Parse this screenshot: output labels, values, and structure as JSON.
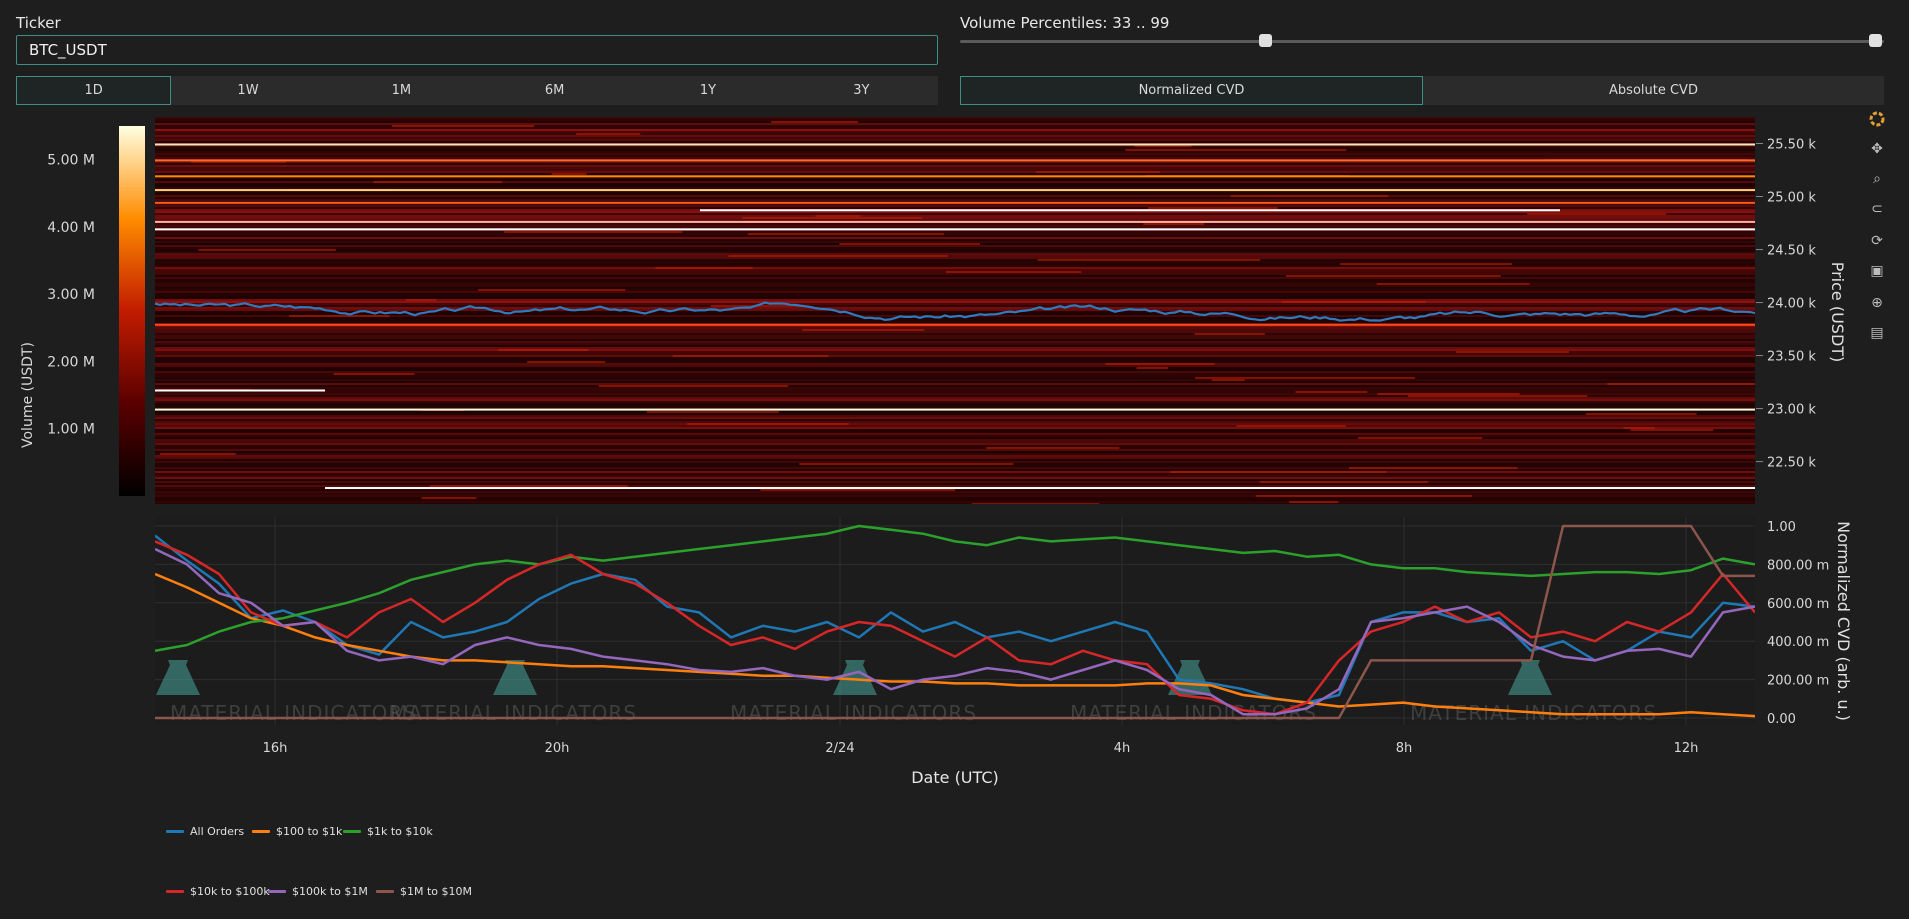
{
  "ticker": {
    "label": "Ticker",
    "value": "BTC_USDT"
  },
  "timeframes": [
    {
      "label": "1D",
      "active": true
    },
    {
      "label": "1W",
      "active": false
    },
    {
      "label": "1M",
      "active": false
    },
    {
      "label": "6M",
      "active": false
    },
    {
      "label": "1Y",
      "active": false
    },
    {
      "label": "3Y",
      "active": false
    }
  ],
  "volume_percentiles": {
    "label": "Volume Percentiles: 33 .. 99",
    "low": 33,
    "high": 99
  },
  "cvd_modes": [
    {
      "label": "Normalized CVD",
      "active": true
    },
    {
      "label": "Absolute CVD",
      "active": false
    }
  ],
  "modebar": [
    "plotly-logo-icon",
    "pan-icon",
    "zoom-icon",
    "lasso-icon",
    "reset-icon",
    "save-icon",
    "spike-icon",
    "hover-icon"
  ],
  "chart_data": [
    {
      "type": "heatmap",
      "colorbar": {
        "title": "Volume (USDT)",
        "ticks": [
          "5.00 M",
          "4.00 M",
          "3.00 M",
          "2.00 M",
          "1.00 M"
        ],
        "range": [
          0,
          5500000
        ]
      },
      "y_axis": {
        "title": "Price (USDT)",
        "ticks": [
          "25.50 k",
          "25.00 k",
          "24.50 k",
          "24.00 k",
          "23.50 k",
          "23.00 k",
          "22.50 k"
        ],
        "range": [
          22100,
          25750
        ]
      },
      "overlay_series": {
        "name": "All Orders",
        "color": "#2f7bc0"
      }
    },
    {
      "type": "line",
      "x_axis": {
        "title": "Date (UTC)",
        "ticks": [
          "16h",
          "20h",
          "2/24",
          "4h",
          "8h",
          "12h"
        ]
      },
      "y_axis": {
        "title": "Normalized CVD (arb. u.)",
        "ticks": [
          "1.00",
          "800.00 m",
          "600.00 m",
          "400.00 m",
          "200.00 m",
          "0.00"
        ],
        "range": [
          0,
          1
        ]
      },
      "series": [
        {
          "name": "All Orders",
          "color": "#1f77b4",
          "values": [
            0.95,
            0.82,
            0.7,
            0.52,
            0.56,
            0.5,
            0.38,
            0.33,
            0.5,
            0.42,
            0.45,
            0.5,
            0.62,
            0.7,
            0.75,
            0.72,
            0.58,
            0.55,
            0.42,
            0.48,
            0.45,
            0.5,
            0.42,
            0.55,
            0.45,
            0.5,
            0.42,
            0.45,
            0.4,
            0.45,
            0.5,
            0.45,
            0.2,
            0.18,
            0.15,
            0.1,
            0.08,
            0.12,
            0.5,
            0.55,
            0.55,
            0.5,
            0.52,
            0.35,
            0.4,
            0.3,
            0.35,
            0.45,
            0.42,
            0.6,
            0.58
          ]
        },
        {
          "name": "$100 to $1k",
          "color": "#ff7f0e",
          "values": [
            0.75,
            0.68,
            0.6,
            0.52,
            0.48,
            0.42,
            0.38,
            0.35,
            0.32,
            0.3,
            0.3,
            0.29,
            0.28,
            0.27,
            0.27,
            0.26,
            0.25,
            0.24,
            0.23,
            0.22,
            0.22,
            0.21,
            0.2,
            0.19,
            0.19,
            0.18,
            0.18,
            0.17,
            0.17,
            0.17,
            0.17,
            0.18,
            0.18,
            0.17,
            0.12,
            0.1,
            0.08,
            0.06,
            0.07,
            0.08,
            0.06,
            0.05,
            0.04,
            0.03,
            0.02,
            0.02,
            0.02,
            0.02,
            0.03,
            0.02,
            0.01
          ]
        },
        {
          "name": "$1k to $10k",
          "color": "#2ca02c",
          "values": [
            0.35,
            0.38,
            0.45,
            0.5,
            0.52,
            0.56,
            0.6,
            0.65,
            0.72,
            0.76,
            0.8,
            0.82,
            0.8,
            0.84,
            0.82,
            0.84,
            0.86,
            0.88,
            0.9,
            0.92,
            0.94,
            0.96,
            1.0,
            0.98,
            0.96,
            0.92,
            0.9,
            0.94,
            0.92,
            0.93,
            0.94,
            0.92,
            0.9,
            0.88,
            0.86,
            0.87,
            0.84,
            0.85,
            0.8,
            0.78,
            0.78,
            0.76,
            0.75,
            0.74,
            0.75,
            0.76,
            0.76,
            0.75,
            0.77,
            0.83,
            0.8
          ]
        },
        {
          "name": "$10k to $100k",
          "color": "#d62728",
          "values": [
            0.92,
            0.85,
            0.75,
            0.55,
            0.48,
            0.5,
            0.42,
            0.55,
            0.62,
            0.5,
            0.6,
            0.72,
            0.8,
            0.85,
            0.75,
            0.7,
            0.6,
            0.48,
            0.38,
            0.42,
            0.36,
            0.45,
            0.5,
            0.48,
            0.4,
            0.32,
            0.42,
            0.3,
            0.28,
            0.35,
            0.3,
            0.28,
            0.12,
            0.1,
            0.04,
            0.02,
            0.08,
            0.3,
            0.45,
            0.5,
            0.58,
            0.5,
            0.55,
            0.42,
            0.45,
            0.4,
            0.5,
            0.45,
            0.55,
            0.75,
            0.55
          ]
        },
        {
          "name": "$100k to $1M",
          "color": "#9467bd",
          "values": [
            0.88,
            0.8,
            0.65,
            0.6,
            0.48,
            0.5,
            0.35,
            0.3,
            0.32,
            0.28,
            0.38,
            0.42,
            0.38,
            0.36,
            0.32,
            0.3,
            0.28,
            0.25,
            0.24,
            0.26,
            0.22,
            0.2,
            0.24,
            0.15,
            0.2,
            0.22,
            0.26,
            0.24,
            0.2,
            0.25,
            0.3,
            0.25,
            0.15,
            0.12,
            0.02,
            0.02,
            0.05,
            0.15,
            0.5,
            0.52,
            0.55,
            0.58,
            0.5,
            0.38,
            0.32,
            0.3,
            0.35,
            0.36,
            0.32,
            0.55,
            0.58
          ]
        },
        {
          "name": "$1M to $10M",
          "color": "#8c564b",
          "values": [
            0.0,
            0.0,
            0.0,
            0.0,
            0.0,
            0.0,
            0.0,
            0.0,
            0.0,
            0.0,
            0.0,
            0.0,
            0.0,
            0.0,
            0.0,
            0.0,
            0.0,
            0.0,
            0.0,
            0.0,
            0.0,
            0.0,
            0.0,
            0.0,
            0.0,
            0.0,
            0.0,
            0.0,
            0.0,
            0.0,
            0.0,
            0.0,
            0.0,
            0.0,
            0.0,
            0.0,
            0.0,
            0.0,
            0.3,
            0.3,
            0.3,
            0.3,
            0.3,
            0.3,
            1.0,
            1.0,
            1.0,
            1.0,
            1.0,
            0.74,
            0.74
          ]
        }
      ]
    }
  ],
  "watermark_text": "MATERIAL INDICATORS",
  "legend": [
    {
      "name": "All Orders",
      "color": "#1f77b4"
    },
    {
      "name": "$100 to $1k",
      "color": "#ff7f0e"
    },
    {
      "name": "$1k to $10k",
      "color": "#2ca02c"
    },
    {
      "name": "$10k to $100k",
      "color": "#d62728"
    },
    {
      "name": "$100k to $1M",
      "color": "#9467bd"
    },
    {
      "name": "$1M to $10M",
      "color": "#8c564b"
    }
  ]
}
